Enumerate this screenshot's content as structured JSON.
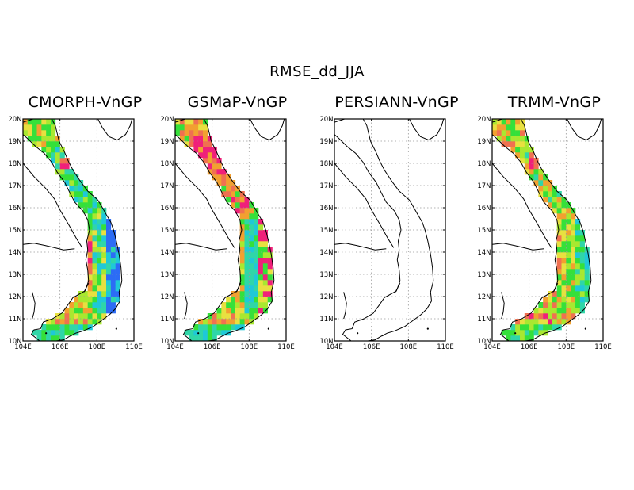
{
  "figure": {
    "title": "RMSE_dd_JJA"
  },
  "panels": [
    {
      "title": "CMORPH-VnGP",
      "scheme": "cmorph"
    },
    {
      "title": "GSMaP-VnGP",
      "scheme": "gsmap"
    },
    {
      "title": "PERSIANN-VnGP",
      "scheme": "none"
    },
    {
      "title": "TRMM-VnGP",
      "scheme": "trmm"
    }
  ],
  "axes": {
    "lon_ticks": [
      "104E",
      "106E",
      "108E",
      "110E"
    ],
    "lat_ticks": [
      "10N",
      "11N",
      "12N",
      "13N",
      "14N",
      "15N",
      "16N",
      "17N",
      "18N",
      "19N",
      "20N"
    ],
    "lon_range": [
      104,
      110
    ],
    "lat_range": [
      10,
      20
    ]
  },
  "colors": {
    "blue": "#2c6cf5",
    "cyan": "#1fc8d8",
    "teal": "#2fd6a8",
    "green": "#35e03a",
    "lime": "#a8e830",
    "yellow": "#e8e040",
    "orange": "#f2a030",
    "salmon": "#f07050",
    "magenta": "#f0207a"
  }
}
